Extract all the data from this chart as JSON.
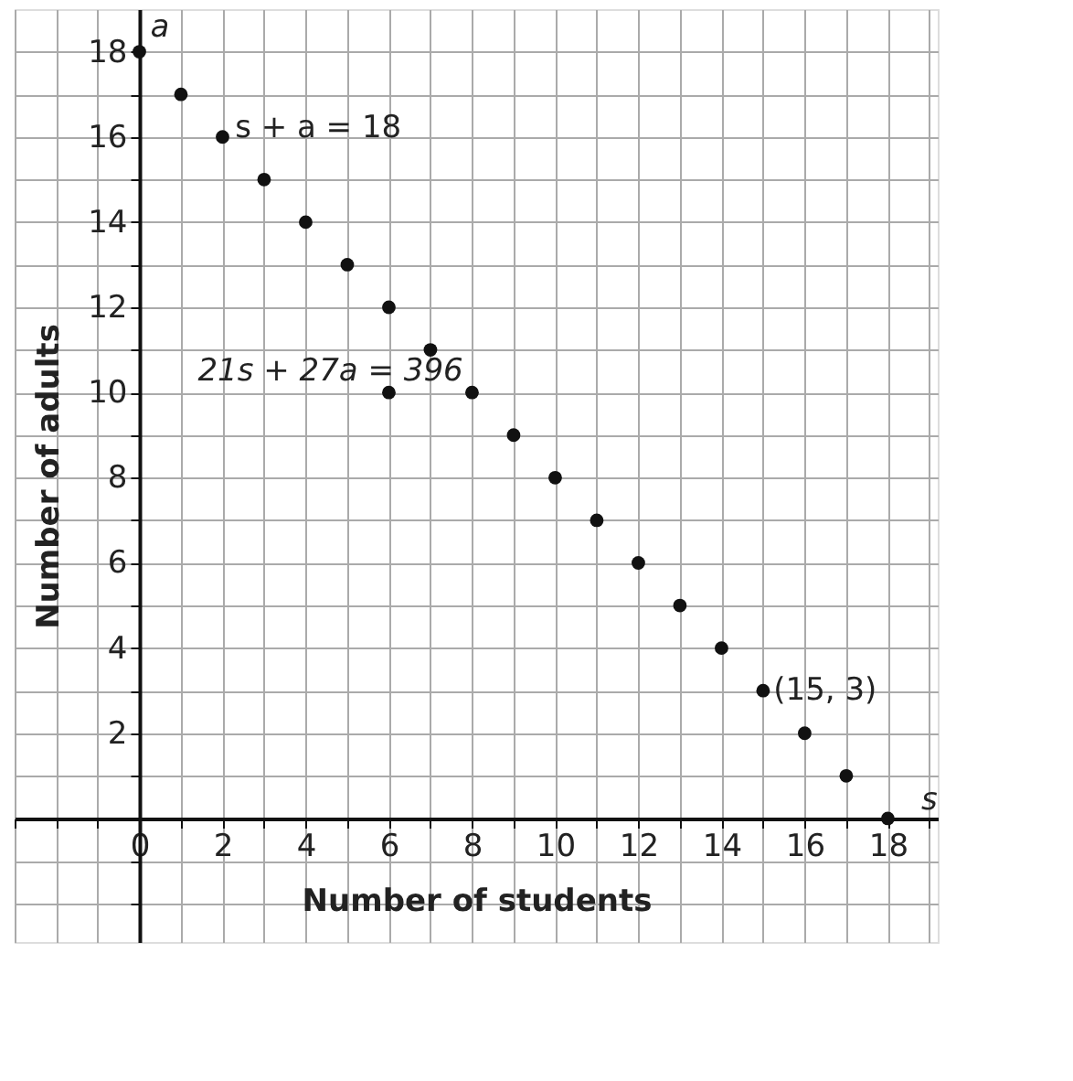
{
  "chart_data": {
    "type": "scatter",
    "xlabel": "Number of students",
    "ylabel": "Number of adults",
    "series": [
      {
        "color": "#111111",
        "x": [
          0,
          1,
          2,
          3,
          4,
          5,
          6,
          7,
          8,
          9,
          10,
          11,
          12,
          13,
          14,
          15,
          16,
          17,
          18,
          6
        ],
        "values": [
          18,
          17,
          16,
          15,
          14,
          13,
          12,
          11,
          10,
          9,
          8,
          7,
          6,
          5,
          4,
          3,
          2,
          1,
          0,
          10
        ]
      }
    ],
    "xlim": [
      -3,
      19.2
    ],
    "ylim": [
      -2.9,
      19
    ],
    "xticks": [
      {
        "value": -3,
        "label": null
      },
      {
        "value": -2,
        "label": null
      },
      {
        "value": -1,
        "label": null
      },
      0,
      {
        "value": 1,
        "label": null
      },
      2,
      {
        "value": 3,
        "label": null
      },
      4,
      {
        "value": 5,
        "label": null
      },
      6,
      {
        "value": 7,
        "label": null
      },
      8,
      {
        "value": 9,
        "label": null
      },
      10,
      {
        "value": 11,
        "label": null
      },
      12,
      {
        "value": 13,
        "label": null
      },
      14,
      {
        "value": 15,
        "label": null
      },
      16,
      {
        "value": 17,
        "label": null
      },
      18,
      {
        "value": 19,
        "label": null
      }
    ],
    "yticks": [
      {
        "value": -2,
        "label": null
      },
      {
        "value": -1,
        "label": null
      },
      {
        "value": 1,
        "label": null
      },
      2,
      {
        "value": 3,
        "label": null
      },
      4,
      {
        "value": 5,
        "label": null
      },
      6,
      {
        "value": 7,
        "label": null
      },
      8,
      {
        "value": 9,
        "label": null
      },
      10,
      {
        "value": 11,
        "label": null
      },
      12,
      {
        "value": 13,
        "label": null
      },
      14,
      {
        "value": 15,
        "label": null
      },
      16,
      {
        "value": 17,
        "label": null
      },
      18
    ],
    "grid": true,
    "marker": "circle",
    "annotations": [
      "a",
      "s",
      {
        "text": "s + a = 18",
        "x": 2.3,
        "y": 16.2
      },
      "21s + 27a = 396",
      {
        "text": "(15, 3)",
        "x": 15.25,
        "y": 3
      }
    ]
  }
}
